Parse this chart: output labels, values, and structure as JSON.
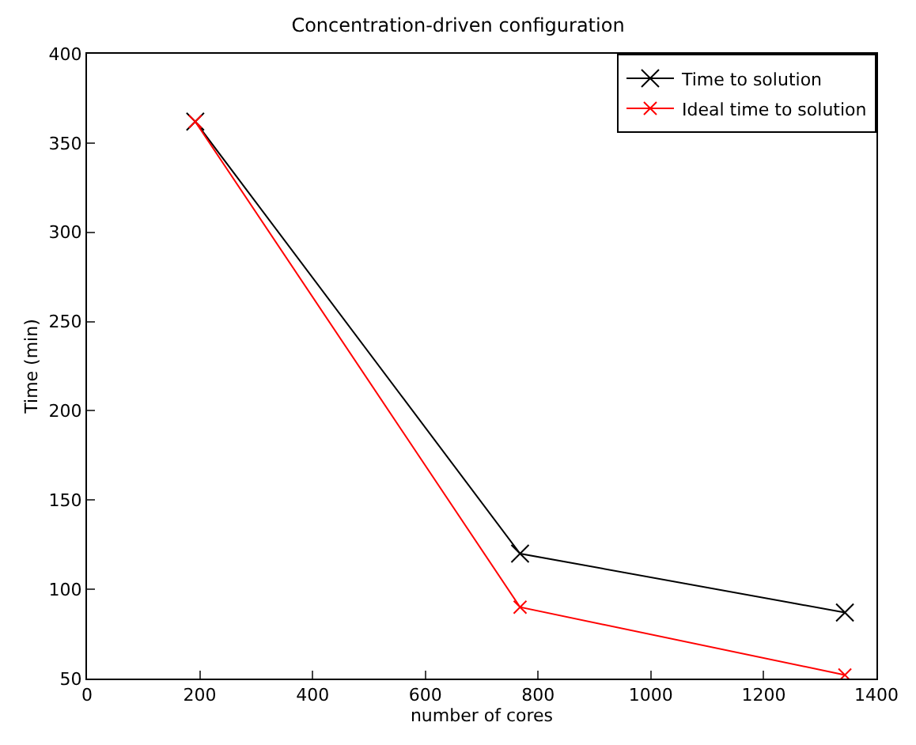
{
  "chart_data": {
    "type": "line",
    "title": "Concentration-driven configuration",
    "xlabel": "number of cores",
    "ylabel": "Time (min)",
    "x": [
      192,
      768,
      1344
    ],
    "series": [
      {
        "name": "Time to solution",
        "color": "#000000",
        "values": [
          362,
          120,
          87
        ]
      },
      {
        "name": "Ideal time to solution",
        "color": "#ff0000",
        "values": [
          362,
          90,
          52
        ]
      }
    ],
    "xlim": [
      0,
      1400
    ],
    "xticks": [
      0,
      200,
      400,
      600,
      800,
      1000,
      1200,
      1400
    ],
    "ylim": [
      50,
      400
    ],
    "yticks": [
      50,
      100,
      150,
      200,
      250,
      300,
      350,
      400
    ],
    "grid": false,
    "legend": "top right",
    "marker": "cross",
    "line_style": "solid"
  }
}
